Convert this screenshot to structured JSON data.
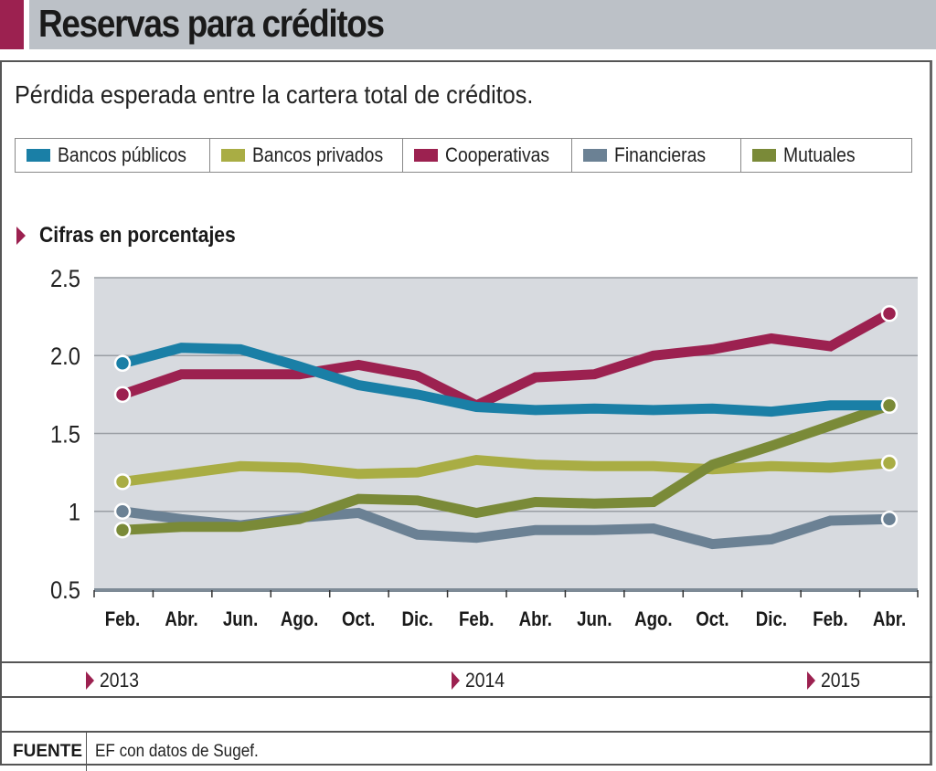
{
  "header": {
    "title": "Reservas para créditos",
    "subtitle": "Pérdida esperada entre la cartera total de créditos.",
    "section_label": "Cifras en porcentajes",
    "accent_color": "#9c2150"
  },
  "years": [
    "2013",
    "2014",
    "2015"
  ],
  "footer": {
    "source_label": "FUENTE",
    "source_text": "EF con datos de Sugef."
  },
  "chart_data": {
    "type": "line",
    "title": "Reservas para créditos",
    "subtitle": "Pérdida esperada entre la cartera total de créditos.",
    "ylabel": "Cifras en porcentajes",
    "xlabel": "",
    "x": [
      "Feb.",
      "Abr.",
      "Jun.",
      "Ago.",
      "Oct.",
      "Dic.",
      "Feb.",
      "Abr.",
      "Jun.",
      "Ago.",
      "Oct.",
      "Dic.",
      "Feb.",
      "Abr."
    ],
    "x_year_groups": [
      {
        "year": "2013",
        "start_index": 0
      },
      {
        "year": "2014",
        "start_index": 6
      },
      {
        "year": "2015",
        "start_index": 12
      }
    ],
    "yticks": [
      0.5,
      1,
      1.5,
      2.0,
      2.5
    ],
    "ytick_labels": [
      "0.5",
      "1",
      "1.5",
      "2.0",
      "2.5"
    ],
    "ylim": [
      0.5,
      2.5
    ],
    "grid": true,
    "legend_position": "top",
    "series": [
      {
        "name": "Bancos públicos",
        "color": "#1a7fa6",
        "values": [
          1.95,
          2.05,
          2.04,
          1.93,
          1.81,
          1.75,
          1.67,
          1.65,
          1.66,
          1.65,
          1.66,
          1.64,
          1.68,
          1.68
        ]
      },
      {
        "name": "Bancos privados",
        "color": "#a9ad44",
        "values": [
          1.19,
          1.24,
          1.29,
          1.28,
          1.24,
          1.25,
          1.33,
          1.3,
          1.29,
          1.29,
          1.27,
          1.29,
          1.28,
          1.31
        ]
      },
      {
        "name": "Cooperativas",
        "color": "#9c2150",
        "values": [
          1.75,
          1.88,
          1.88,
          1.88,
          1.94,
          1.87,
          1.68,
          1.86,
          1.88,
          2.0,
          2.04,
          2.11,
          2.06,
          2.27
        ]
      },
      {
        "name": "Financieras",
        "color": "#6b8194",
        "values": [
          1.0,
          0.95,
          0.91,
          0.96,
          0.99,
          0.85,
          0.83,
          0.88,
          0.88,
          0.89,
          0.79,
          0.82,
          0.94,
          0.95
        ]
      },
      {
        "name": "Mutuales",
        "color": "#7a8a38",
        "values": [
          0.88,
          0.9,
          0.9,
          0.95,
          1.08,
          1.07,
          0.99,
          1.06,
          1.05,
          1.06,
          1.3,
          1.42,
          1.55,
          1.68
        ]
      }
    ],
    "endpoint_markers": true
  }
}
